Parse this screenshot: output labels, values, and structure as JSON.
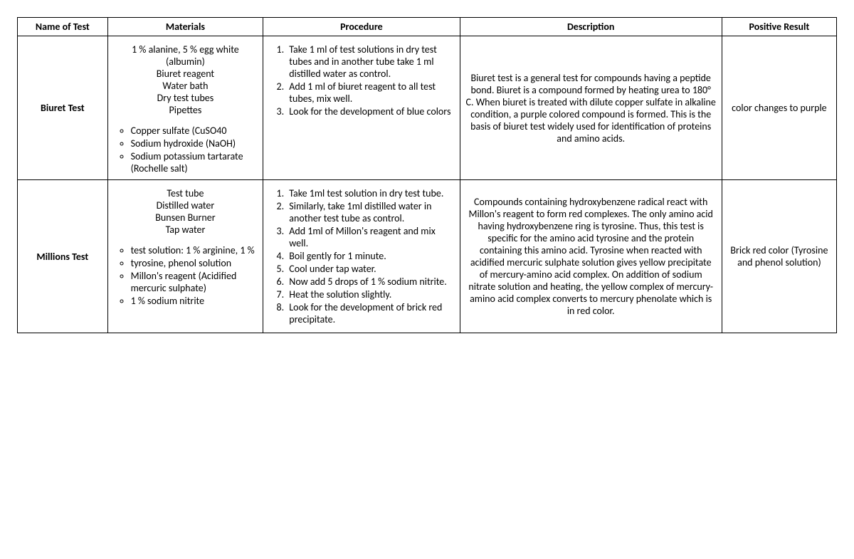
{
  "columns": [
    "Name of Test",
    "Materials",
    "Procedure",
    "Description",
    "Positive Result"
  ],
  "rows": [
    {
      "name": "Biuret Test",
      "materials_top": "1 % alanine, 5 % egg white (albumin)",
      "materials_lines": [
        "Biuret reagent",
        "Water bath",
        "Dry test tubes",
        "Pipettes"
      ],
      "materials_bullets": [
        "Copper sulfate (CuSO40",
        "Sodium hydroxide (NaOH)",
        "Sodium potassium tartarate (Rochelle salt)"
      ],
      "procedure": [
        "Take 1 ml of test solutions in dry test tubes and in another tube take 1 ml distilled water as control.",
        "Add 1 ml of biuret reagent to all test tubes, mix well.",
        "Look for the development of blue colors"
      ],
      "description": "Biuret test is a general test for compounds having a peptide bond. Biuret is a compound formed by heating urea to 180° C. When biuret is treated with dilute copper sulfate in alkaline condition, a purple colored compound is formed. This is the basis of biuret test widely used for identification of proteins and amino acids.",
      "result": "color changes to purple"
    },
    {
      "name": "Millions Test",
      "materials_top": "",
      "materials_lines": [
        "Test tube",
        "Distilled water",
        "Bunsen Burner",
        "Tap water"
      ],
      "materials_bullets": [
        "test solution: 1 % arginine, 1 %",
        "tyrosine, phenol solution",
        "Millon's reagent (Acidified mercuric sulphate)",
        "1 % sodium nitrite"
      ],
      "procedure": [
        "Take 1ml test solution in dry test tube.",
        "Similarly, take 1ml distilled water in another test tube as control.",
        "Add 1ml of Millon's reagent and mix well.",
        "Boil gently for 1 minute.",
        "Cool under tap water.",
        "Now add 5 drops of 1 % sodium nitrite.",
        "Heat the solution slightly.",
        "Look for the development of brick red precipitate."
      ],
      "description": "Compounds containing hydroxybenzene radical react with Millon's reagent to form red complexes. The only amino acid having hydroxybenzene ring is tyrosine. Thus, this test is specific for the amino acid tyrosine and the protein containing this amino acid. Tyrosine when reacted with acidified mercuric sulphate solution gives yellow precipitate of mercury-amino acid complex. On addition of sodium nitrate solution and heating, the yellow complex of mercury-amino acid complex converts to mercury phenolate which is in red color.",
      "result": "Brick red color (Tyrosine and phenol solution)"
    }
  ]
}
